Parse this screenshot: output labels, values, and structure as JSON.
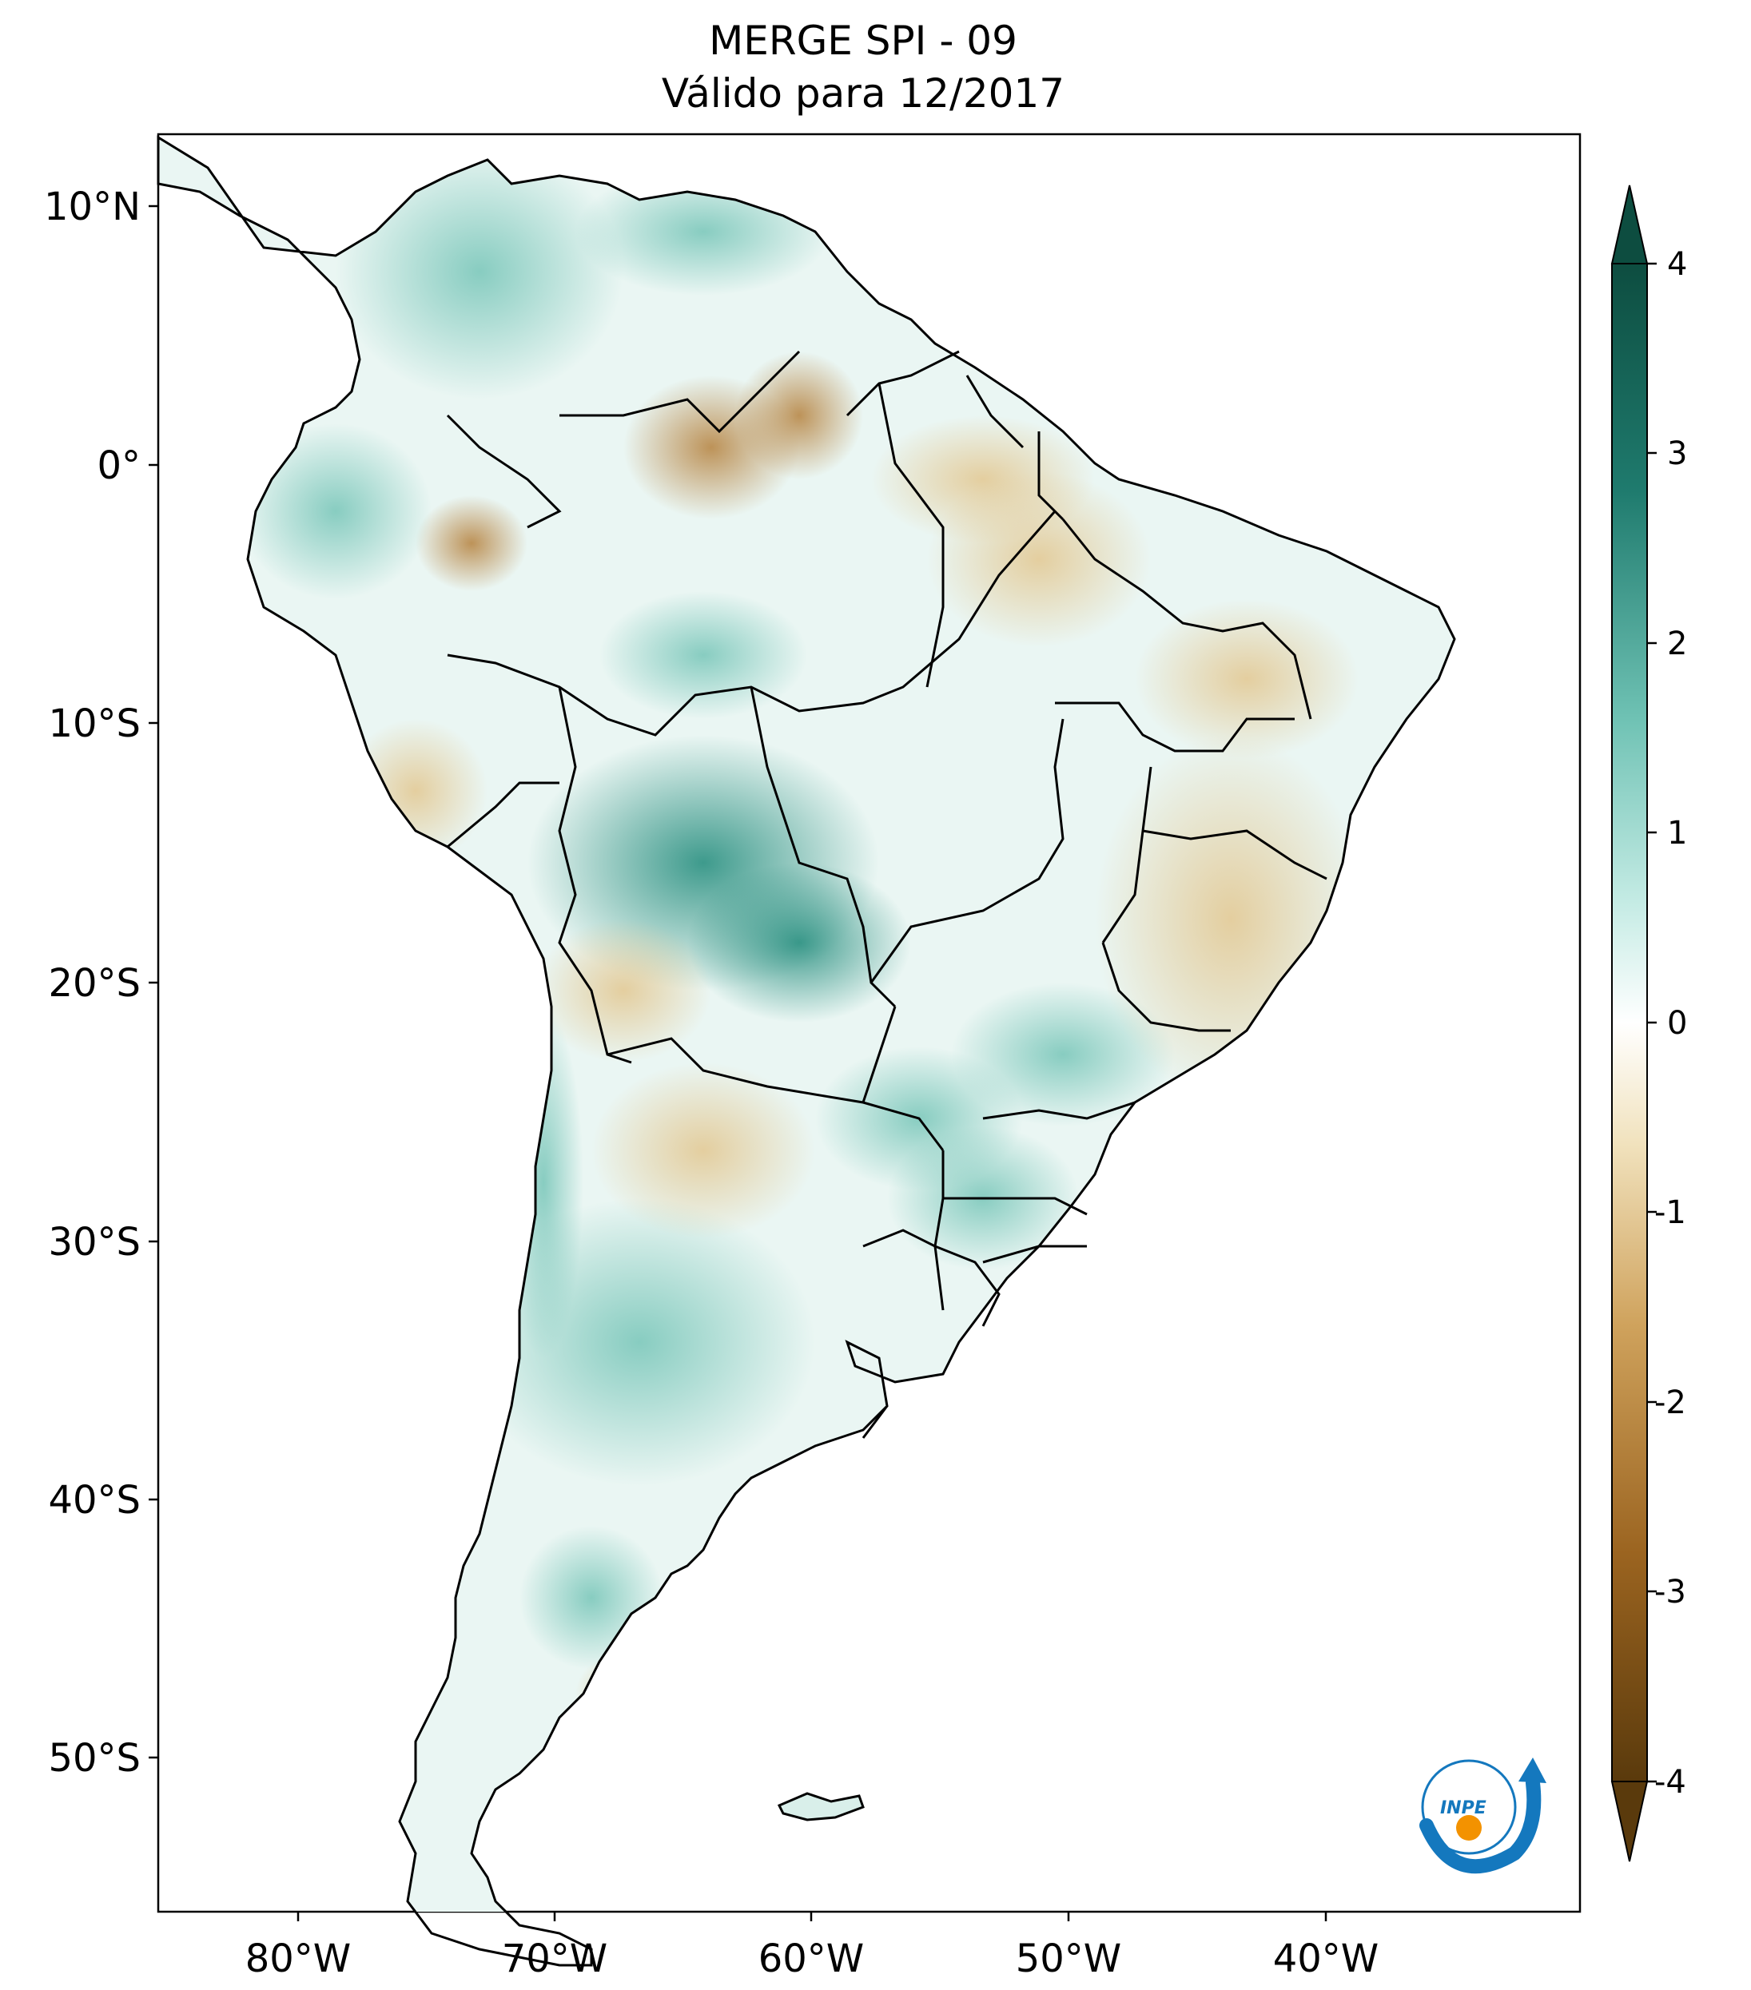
{
  "title": {
    "line1": "MERGE   SPI - 09",
    "line2": "Válido para 12/2017"
  },
  "map": {
    "lon_ticks": [
      "80°W",
      "70°W",
      "60°W",
      "50°W",
      "40°W"
    ],
    "lat_ticks": [
      "10°N",
      "0°",
      "10°S",
      "20°S",
      "30°S",
      "40°S",
      "50°S"
    ]
  },
  "colorbar": {
    "labels": [
      "4",
      "3",
      "2",
      "1",
      "0",
      "-1",
      "-2",
      "-3",
      "-4"
    ],
    "colors": {
      "dry_extreme": "#5a3a0c",
      "dry": "#b8874a",
      "dry_light": "#e9d2a0",
      "neutral": "#ffffff",
      "wet_light": "#a9ddd6",
      "wet": "#3a9e92",
      "wet_extreme": "#0d4d40"
    }
  },
  "logo": {
    "text": "INPE",
    "colors": {
      "blue": "#1478be",
      "orange": "#f39200"
    }
  }
}
